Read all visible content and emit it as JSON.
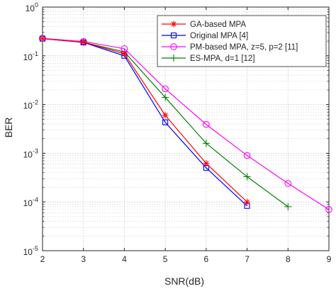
{
  "chart_data": {
    "type": "line",
    "title": "",
    "xlabel": "SNR(dB)",
    "ylabel": "BER",
    "xlim": [
      2,
      9
    ],
    "ylim": [
      1e-05,
      1
    ],
    "yscale": "log",
    "grid": "major and minor, dotted",
    "legend_position": "top-right",
    "x_ticks": [
      "2",
      "3",
      "4",
      "5",
      "6",
      "7",
      "8",
      "9"
    ],
    "y_ticks": [
      {
        "exp": -5,
        "base": "10",
        "power": "-5"
      },
      {
        "exp": -4,
        "base": "10",
        "power": "-4"
      },
      {
        "exp": -3,
        "base": "10",
        "power": "-3"
      },
      {
        "exp": -2,
        "base": "10",
        "power": "-2"
      },
      {
        "exp": -1,
        "base": "10",
        "power": "-1"
      },
      {
        "exp": 0,
        "base": "10",
        "power": "0"
      }
    ],
    "series": [
      {
        "name": "GA-based MPA",
        "color": "#ff0000",
        "marker": "asterisk",
        "x": [
          2,
          3,
          4,
          5,
          6,
          7
        ],
        "y": [
          0.225,
          0.19,
          0.11,
          0.006,
          0.00062,
          0.0001
        ]
      },
      {
        "name": "Original MPA [4]",
        "color": "#0000ff",
        "marker": "square",
        "x": [
          2,
          3,
          4,
          5,
          6,
          7
        ],
        "y": [
          0.225,
          0.188,
          0.1,
          0.0043,
          0.0005,
          8.3e-05
        ]
      },
      {
        "name": "PM-based MPA, z=5, p=2 [11]",
        "color": "#ff00ff",
        "marker": "circle",
        "x": [
          2,
          3,
          4,
          5,
          6,
          7,
          8,
          9
        ],
        "y": [
          0.228,
          0.197,
          0.14,
          0.021,
          0.0039,
          0.0009,
          0.00024,
          7e-05
        ]
      },
      {
        "name": "ES-MPA, d=1 [12]",
        "color": "#008000",
        "marker": "plus",
        "x": [
          2,
          3,
          4,
          5,
          6,
          7,
          8
        ],
        "y": [
          0.225,
          0.19,
          0.12,
          0.014,
          0.0016,
          0.00033,
          8e-05
        ]
      }
    ]
  }
}
